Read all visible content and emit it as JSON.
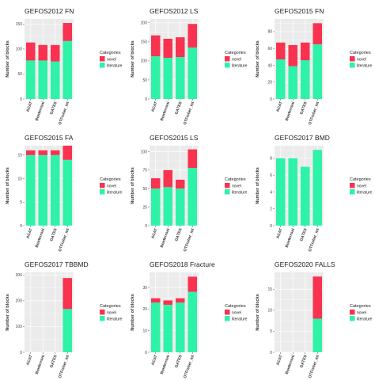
{
  "colors": {
    "panel_bg": "#EBEBEB",
    "grid": "#FFFFFF",
    "novel": "#F8324F",
    "literature": "#2EF2A8"
  },
  "chart_data": [
    {
      "type": "bar",
      "stacked": true,
      "title": "GEFOS2012 FN",
      "xlabel": "",
      "ylabel": "Number of blocks",
      "categories": [
        "ACAT",
        "Bonferroni",
        "GATES",
        "OTFisher_int"
      ],
      "series": [
        {
          "name": "literature",
          "values": [
            77,
            77,
            75,
            116
          ]
        },
        {
          "name": "novel",
          "values": [
            36,
            31,
            33,
            36
          ]
        }
      ],
      "ylim": [
        0,
        160
      ],
      "yticks": [
        0,
        50,
        100,
        150
      ],
      "grid": true,
      "legend": {
        "title": "Categories",
        "placement": "right"
      }
    },
    {
      "type": "bar",
      "stacked": true,
      "title": "GEFOS2012 LS",
      "xlabel": "",
      "ylabel": "Number of blocks",
      "categories": [
        "ACAT",
        "Bonferroni",
        "GATES",
        "OTFisher_int"
      ],
      "series": [
        {
          "name": "literature",
          "values": [
            112,
            108,
            110,
            135
          ]
        },
        {
          "name": "novel",
          "values": [
            55,
            50,
            52,
            62
          ]
        }
      ],
      "ylim": [
        0,
        210
      ],
      "yticks": [
        0,
        50,
        100,
        150,
        200
      ],
      "grid": true,
      "legend": {
        "title": "Categories",
        "placement": "right"
      }
    },
    {
      "type": "bar",
      "stacked": true,
      "title": "GEFOS2015 FN",
      "xlabel": "",
      "ylabel": "Number of blocks",
      "categories": [
        "ACAT",
        "Bonferroni",
        "GATES",
        "OTFisher_int"
      ],
      "series": [
        {
          "name": "literature",
          "values": [
            47,
            39,
            46,
            65
          ]
        },
        {
          "name": "novel",
          "values": [
            20,
            25,
            21,
            25
          ]
        }
      ],
      "ylim": [
        0,
        95
      ],
      "yticks": [
        0,
        20,
        40,
        60,
        80
      ],
      "grid": true,
      "legend": {
        "title": "Categories",
        "placement": "right"
      }
    },
    {
      "type": "bar",
      "stacked": true,
      "title": "GEFOS2015 FA",
      "xlabel": "",
      "ylabel": "Number of blocks",
      "categories": [
        "ACAT",
        "Bonferroni",
        "GATES",
        "OTFisher_int"
      ],
      "series": [
        {
          "name": "literature",
          "values": [
            15,
            15,
            15,
            14
          ]
        },
        {
          "name": "novel",
          "values": [
            1,
            1,
            1,
            3
          ]
        }
      ],
      "ylim": [
        0,
        17
      ],
      "yticks": [
        0,
        5,
        10,
        15
      ],
      "grid": true,
      "legend": {
        "title": "Categories",
        "placement": "right"
      }
    },
    {
      "type": "bar",
      "stacked": true,
      "title": "GEFOS2015 LS",
      "xlabel": "",
      "ylabel": "Number of blocks",
      "categories": [
        "ACAT",
        "Bonferroni",
        "GATES",
        "OTFisher_int"
      ],
      "series": [
        {
          "name": "literature",
          "values": [
            50,
            52,
            50,
            78
          ]
        },
        {
          "name": "novel",
          "values": [
            14,
            23,
            12,
            25
          ]
        }
      ],
      "ylim": [
        0,
        108
      ],
      "yticks": [
        0,
        25,
        50,
        75,
        100
      ],
      "grid": true,
      "legend": {
        "title": "Categories",
        "placement": "right"
      }
    },
    {
      "type": "bar",
      "stacked": true,
      "title": "GEFOS2017 BMD",
      "xlabel": "",
      "ylabel": "Number of blocks",
      "categories": [
        "ACAT",
        "Bonferroni",
        "GATES",
        "OTFisher_int"
      ],
      "series": [
        {
          "name": "literature",
          "values": [
            8,
            8,
            7,
            9
          ]
        },
        {
          "name": "novel",
          "values": [
            0,
            0,
            0,
            0
          ]
        }
      ],
      "ylim": [
        0,
        9.5
      ],
      "yticks": [
        0,
        2,
        4,
        6,
        8
      ],
      "grid": true,
      "legend": {
        "title": "Categories",
        "placement": "right"
      }
    },
    {
      "type": "bar",
      "stacked": true,
      "title": "GEFOS2017 TBBMD",
      "xlabel": "",
      "ylabel": "Number of blocks",
      "categories": [
        "ACAT",
        "Bonferroni",
        "GATES",
        "OTFisher_int"
      ],
      "series": [
        {
          "name": "literature",
          "values": [
            0,
            0,
            0,
            168
          ]
        },
        {
          "name": "novel",
          "values": [
            0,
            0,
            0,
            120
          ]
        }
      ],
      "ylim": [
        0,
        310
      ],
      "yticks": [
        0,
        100,
        200,
        300
      ],
      "grid": true,
      "legend": {
        "title": "Categories",
        "placement": "right"
      }
    },
    {
      "type": "bar",
      "stacked": true,
      "title": "GEFOS2018 Fracture",
      "xlabel": "",
      "ylabel": "Number of blocks",
      "categories": [
        "ACAT",
        "Bonferroni",
        "GATES",
        "OTFisher_int"
      ],
      "series": [
        {
          "name": "literature",
          "values": [
            23,
            22,
            23,
            28
          ]
        },
        {
          "name": "novel",
          "values": [
            2,
            2,
            2,
            7
          ]
        }
      ],
      "ylim": [
        0,
        37
      ],
      "yticks": [
        0,
        10,
        20,
        30
      ],
      "grid": true,
      "legend": {
        "title": "Categories",
        "placement": "right"
      }
    },
    {
      "type": "bar",
      "stacked": true,
      "title": "GEFOS2020 FALLS",
      "xlabel": "",
      "ylabel": "Number of blocks",
      "categories": [
        "ACAT",
        "Bonferroni",
        "GATES",
        "OTFisher_int"
      ],
      "series": [
        {
          "name": "literature",
          "values": [
            0,
            0,
            0,
            8
          ]
        },
        {
          "name": "novel",
          "values": [
            0,
            0,
            0,
            10
          ]
        }
      ],
      "ylim": [
        0,
        19
      ],
      "yticks": [
        0,
        5,
        10,
        15
      ],
      "grid": true,
      "legend": {
        "title": "Categories",
        "placement": "right"
      }
    }
  ]
}
